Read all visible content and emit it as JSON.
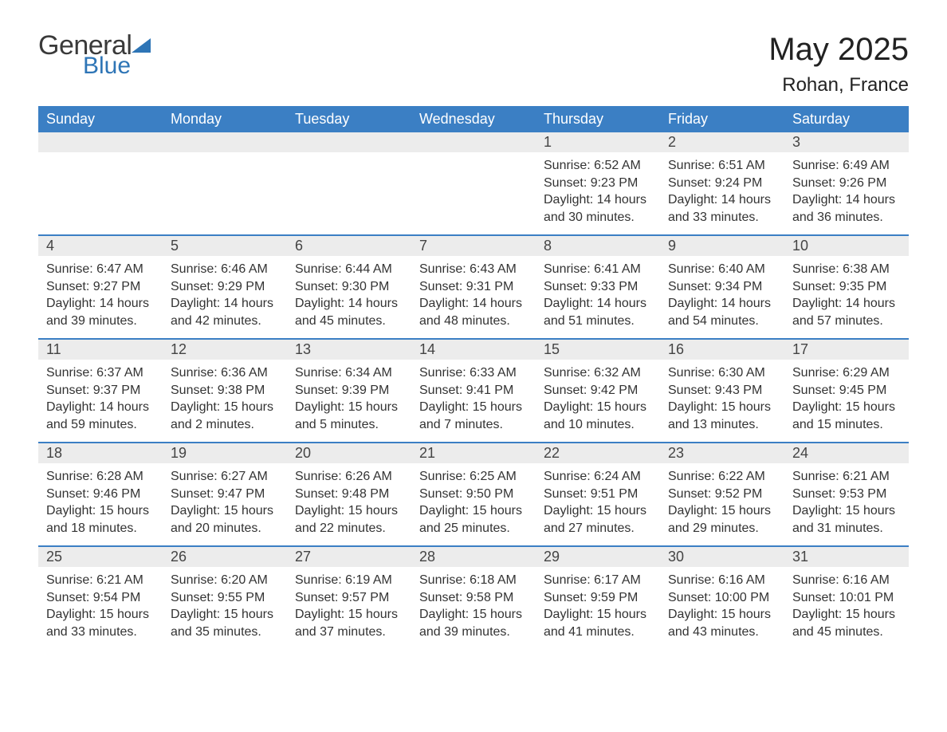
{
  "logo": {
    "general": "General",
    "blue": "Blue"
  },
  "title": "May 2025",
  "location": "Rohan, France",
  "colors": {
    "header_bg": "#3b7fc4",
    "daynum_bg": "#ececec",
    "logo_blue": "#2e75b6",
    "text": "#333333"
  },
  "days_of_week": [
    "Sunday",
    "Monday",
    "Tuesday",
    "Wednesday",
    "Thursday",
    "Friday",
    "Saturday"
  ],
  "weeks": [
    [
      {
        "n": "",
        "sr": "",
        "ss": "",
        "dl": ""
      },
      {
        "n": "",
        "sr": "",
        "ss": "",
        "dl": ""
      },
      {
        "n": "",
        "sr": "",
        "ss": "",
        "dl": ""
      },
      {
        "n": "",
        "sr": "",
        "ss": "",
        "dl": ""
      },
      {
        "n": "1",
        "sr": "Sunrise: 6:52 AM",
        "ss": "Sunset: 9:23 PM",
        "dl": "Daylight: 14 hours and 30 minutes."
      },
      {
        "n": "2",
        "sr": "Sunrise: 6:51 AM",
        "ss": "Sunset: 9:24 PM",
        "dl": "Daylight: 14 hours and 33 minutes."
      },
      {
        "n": "3",
        "sr": "Sunrise: 6:49 AM",
        "ss": "Sunset: 9:26 PM",
        "dl": "Daylight: 14 hours and 36 minutes."
      }
    ],
    [
      {
        "n": "4",
        "sr": "Sunrise: 6:47 AM",
        "ss": "Sunset: 9:27 PM",
        "dl": "Daylight: 14 hours and 39 minutes."
      },
      {
        "n": "5",
        "sr": "Sunrise: 6:46 AM",
        "ss": "Sunset: 9:29 PM",
        "dl": "Daylight: 14 hours and 42 minutes."
      },
      {
        "n": "6",
        "sr": "Sunrise: 6:44 AM",
        "ss": "Sunset: 9:30 PM",
        "dl": "Daylight: 14 hours and 45 minutes."
      },
      {
        "n": "7",
        "sr": "Sunrise: 6:43 AM",
        "ss": "Sunset: 9:31 PM",
        "dl": "Daylight: 14 hours and 48 minutes."
      },
      {
        "n": "8",
        "sr": "Sunrise: 6:41 AM",
        "ss": "Sunset: 9:33 PM",
        "dl": "Daylight: 14 hours and 51 minutes."
      },
      {
        "n": "9",
        "sr": "Sunrise: 6:40 AM",
        "ss": "Sunset: 9:34 PM",
        "dl": "Daylight: 14 hours and 54 minutes."
      },
      {
        "n": "10",
        "sr": "Sunrise: 6:38 AM",
        "ss": "Sunset: 9:35 PM",
        "dl": "Daylight: 14 hours and 57 minutes."
      }
    ],
    [
      {
        "n": "11",
        "sr": "Sunrise: 6:37 AM",
        "ss": "Sunset: 9:37 PM",
        "dl": "Daylight: 14 hours and 59 minutes."
      },
      {
        "n": "12",
        "sr": "Sunrise: 6:36 AM",
        "ss": "Sunset: 9:38 PM",
        "dl": "Daylight: 15 hours and 2 minutes."
      },
      {
        "n": "13",
        "sr": "Sunrise: 6:34 AM",
        "ss": "Sunset: 9:39 PM",
        "dl": "Daylight: 15 hours and 5 minutes."
      },
      {
        "n": "14",
        "sr": "Sunrise: 6:33 AM",
        "ss": "Sunset: 9:41 PM",
        "dl": "Daylight: 15 hours and 7 minutes."
      },
      {
        "n": "15",
        "sr": "Sunrise: 6:32 AM",
        "ss": "Sunset: 9:42 PM",
        "dl": "Daylight: 15 hours and 10 minutes."
      },
      {
        "n": "16",
        "sr": "Sunrise: 6:30 AM",
        "ss": "Sunset: 9:43 PM",
        "dl": "Daylight: 15 hours and 13 minutes."
      },
      {
        "n": "17",
        "sr": "Sunrise: 6:29 AM",
        "ss": "Sunset: 9:45 PM",
        "dl": "Daylight: 15 hours and 15 minutes."
      }
    ],
    [
      {
        "n": "18",
        "sr": "Sunrise: 6:28 AM",
        "ss": "Sunset: 9:46 PM",
        "dl": "Daylight: 15 hours and 18 minutes."
      },
      {
        "n": "19",
        "sr": "Sunrise: 6:27 AM",
        "ss": "Sunset: 9:47 PM",
        "dl": "Daylight: 15 hours and 20 minutes."
      },
      {
        "n": "20",
        "sr": "Sunrise: 6:26 AM",
        "ss": "Sunset: 9:48 PM",
        "dl": "Daylight: 15 hours and 22 minutes."
      },
      {
        "n": "21",
        "sr": "Sunrise: 6:25 AM",
        "ss": "Sunset: 9:50 PM",
        "dl": "Daylight: 15 hours and 25 minutes."
      },
      {
        "n": "22",
        "sr": "Sunrise: 6:24 AM",
        "ss": "Sunset: 9:51 PM",
        "dl": "Daylight: 15 hours and 27 minutes."
      },
      {
        "n": "23",
        "sr": "Sunrise: 6:22 AM",
        "ss": "Sunset: 9:52 PM",
        "dl": "Daylight: 15 hours and 29 minutes."
      },
      {
        "n": "24",
        "sr": "Sunrise: 6:21 AM",
        "ss": "Sunset: 9:53 PM",
        "dl": "Daylight: 15 hours and 31 minutes."
      }
    ],
    [
      {
        "n": "25",
        "sr": "Sunrise: 6:21 AM",
        "ss": "Sunset: 9:54 PM",
        "dl": "Daylight: 15 hours and 33 minutes."
      },
      {
        "n": "26",
        "sr": "Sunrise: 6:20 AM",
        "ss": "Sunset: 9:55 PM",
        "dl": "Daylight: 15 hours and 35 minutes."
      },
      {
        "n": "27",
        "sr": "Sunrise: 6:19 AM",
        "ss": "Sunset: 9:57 PM",
        "dl": "Daylight: 15 hours and 37 minutes."
      },
      {
        "n": "28",
        "sr": "Sunrise: 6:18 AM",
        "ss": "Sunset: 9:58 PM",
        "dl": "Daylight: 15 hours and 39 minutes."
      },
      {
        "n": "29",
        "sr": "Sunrise: 6:17 AM",
        "ss": "Sunset: 9:59 PM",
        "dl": "Daylight: 15 hours and 41 minutes."
      },
      {
        "n": "30",
        "sr": "Sunrise: 6:16 AM",
        "ss": "Sunset: 10:00 PM",
        "dl": "Daylight: 15 hours and 43 minutes."
      },
      {
        "n": "31",
        "sr": "Sunrise: 6:16 AM",
        "ss": "Sunset: 10:01 PM",
        "dl": "Daylight: 15 hours and 45 minutes."
      }
    ]
  ]
}
